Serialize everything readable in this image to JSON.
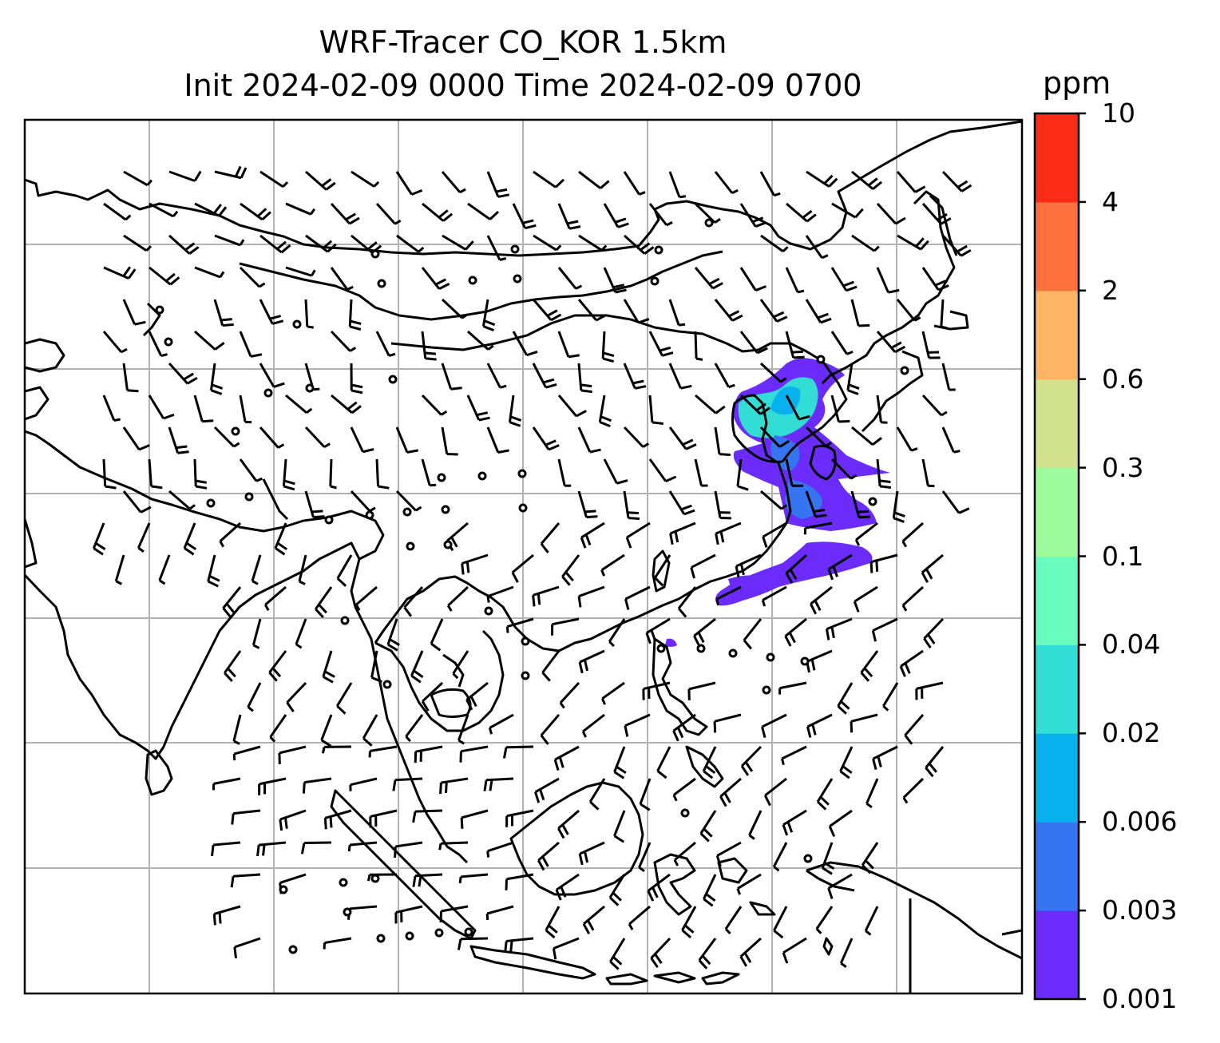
{
  "title": {
    "line1": "WRF-Tracer CO_KOR 1.5km",
    "line2": "Init 2024-02-09 0000 Time 2024-02-09 0700"
  },
  "colorbar": {
    "unit": "ppm",
    "levels": [
      "0.001",
      "0.003",
      "0.006",
      "0.02",
      "0.04",
      "0.1",
      "0.3",
      "0.6",
      "2",
      "4",
      "10"
    ],
    "colors": [
      "#6a2bfb",
      "#3575f2",
      "#06b1ee",
      "#32ddd6",
      "#69fcbf",
      "#9cfb9c",
      "#d1e18c",
      "#fdb464",
      "#fe703e",
      "#fb2b18"
    ]
  },
  "map": {
    "field": "CO tracer concentration",
    "wind_symbols": "wind barbs",
    "plume_color_main": "#6a2bfb"
  }
}
